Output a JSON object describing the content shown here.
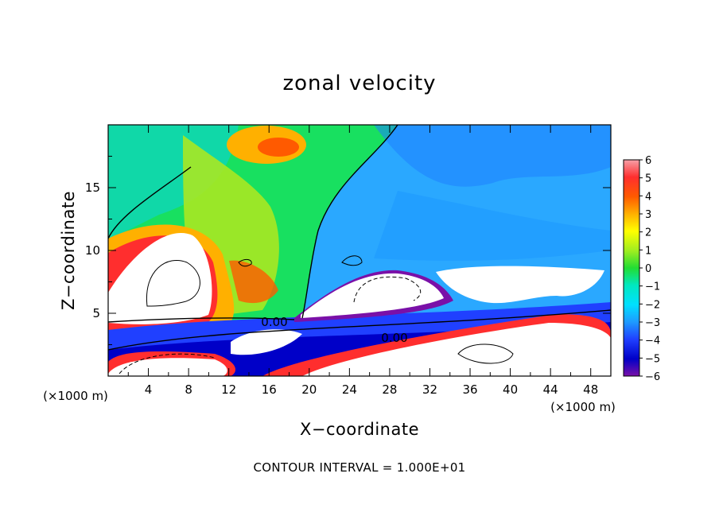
{
  "chart_data": {
    "type": "heatmap",
    "title": "zonal velocity",
    "xlabel": "X−coordinate",
    "ylabel": "Z−coordinate",
    "x_unit": "(×1000 m)",
    "y_unit": "(×1000 m)",
    "xlim": [
      0,
      50
    ],
    "ylim": [
      0,
      20
    ],
    "x_ticks": [
      "4",
      "8",
      "12",
      "16",
      "20",
      "24",
      "28",
      "32",
      "36",
      "40",
      "44",
      "48"
    ],
    "y_ticks": [
      "5",
      "10",
      "15"
    ],
    "colorbar": {
      "min": -6,
      "max": 6,
      "ticks": [
        "6",
        "5",
        "4",
        "3",
        "2",
        "1",
        "0",
        "−1",
        "−2",
        "−3",
        "−4",
        "−5",
        "−6"
      ]
    },
    "contour_labels": [
      "0.00",
      "0.00"
    ],
    "footnote": "CONTOUR INTERVAL = 1.000E+01"
  }
}
